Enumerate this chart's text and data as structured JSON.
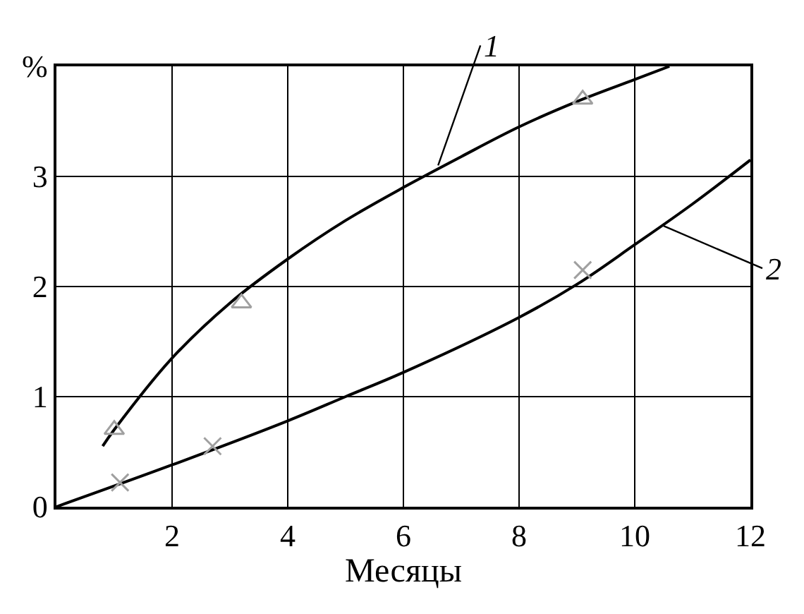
{
  "chart_data": {
    "type": "line",
    "xlabel": "Месяцы",
    "xlim": [
      0,
      12
    ],
    "ylim": [
      0,
      4
    ],
    "xticks": [
      {
        "value": 0,
        "label": null
      },
      2,
      4,
      6,
      8,
      10,
      12
    ],
    "yticks": [
      0,
      1,
      2,
      3,
      {
        "value": 4,
        "label": "%"
      }
    ],
    "grid": true,
    "series": [
      {
        "color": "#000000",
        "marker": "none",
        "x": [
          0.8,
          1,
          2,
          3,
          4,
          5,
          6,
          7,
          8,
          9,
          10,
          10.6
        ],
        "values": [
          0.55,
          0.7,
          1.35,
          1.85,
          2.25,
          2.6,
          2.9,
          3.18,
          3.45,
          3.68,
          3.88,
          4.0
        ]
      },
      {
        "color": "#000000",
        "marker": "none",
        "x": [
          0,
          2,
          4,
          5,
          6,
          8,
          9,
          10,
          11,
          12
        ],
        "values": [
          0,
          0.38,
          0.78,
          1.0,
          1.22,
          1.72,
          2.02,
          2.38,
          2.75,
          3.15
        ]
      },
      {
        "type": "scatter",
        "color": "#a0a0a0",
        "marker": "triangle",
        "x": [
          1.0,
          3.2,
          9.1
        ],
        "values": [
          0.7,
          1.85,
          3.7
        ]
      },
      {
        "type": "scatter",
        "color": "#a0a0a0",
        "marker": "cross",
        "x": [
          1.1,
          2.7,
          9.1
        ],
        "values": [
          0.22,
          0.55,
          2.15
        ]
      }
    ],
    "annotations": [
      {
        "text": "1",
        "x": 6.6,
        "y": 3.1
      },
      {
        "text": "2",
        "x": 10.5,
        "y": 2.55
      }
    ]
  }
}
